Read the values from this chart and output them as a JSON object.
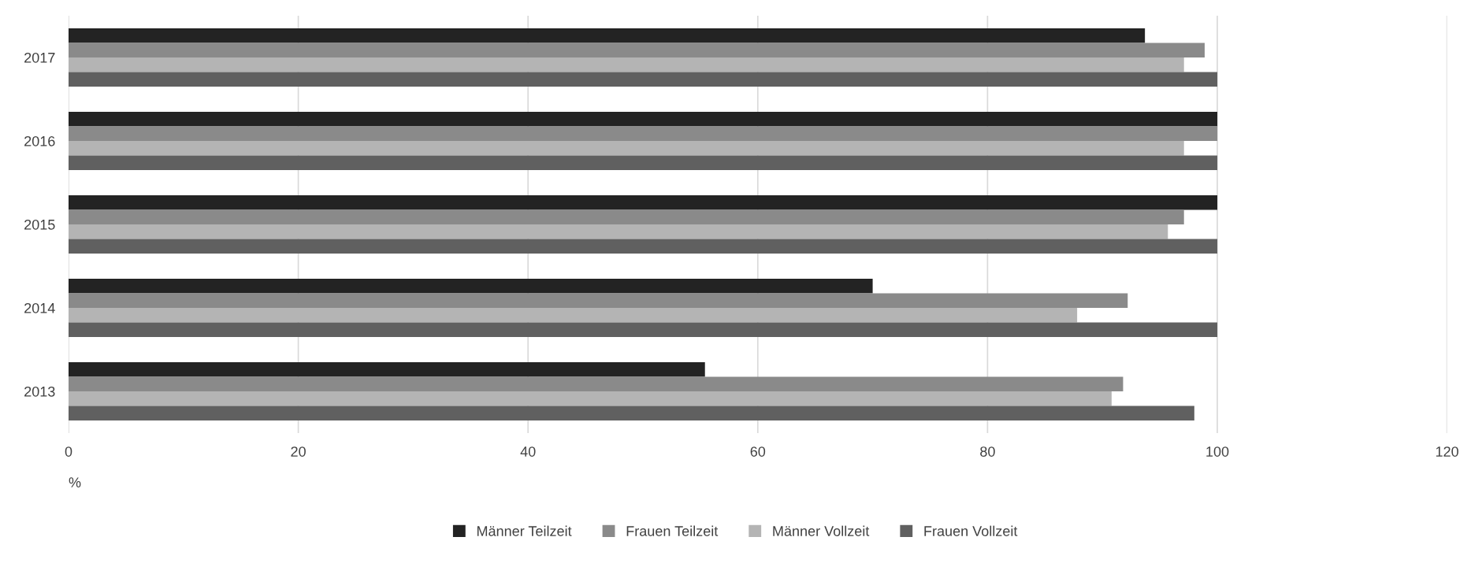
{
  "chart_data": {
    "type": "bar",
    "orientation": "horizontal",
    "xlabel": "%",
    "categories": [
      "2017",
      "2016",
      "2015",
      "2014",
      "2013"
    ],
    "series": [
      {
        "name": "Männer Teilzeit",
        "color": "#232323",
        "values": [
          93.7,
          100,
          100,
          70.0,
          55.4
        ]
      },
      {
        "name": "Frauen Teilzeit",
        "color": "#8a8a8a",
        "values": [
          98.9,
          100,
          97.1,
          92.2,
          91.8
        ]
      },
      {
        "name": "Männer Vollzeit",
        "color": "#b4b4b4",
        "values": [
          97.1,
          97.1,
          95.7,
          87.8,
          90.8
        ]
      },
      {
        "name": "Frauen Vollzeit",
        "color": "#606060",
        "values": [
          100,
          100,
          100,
          100,
          98.0
        ]
      }
    ],
    "xlim": [
      0,
      120
    ],
    "xticks": [
      0,
      20,
      40,
      60,
      80,
      100,
      120
    ],
    "grid": "x",
    "legend": "bottom"
  }
}
